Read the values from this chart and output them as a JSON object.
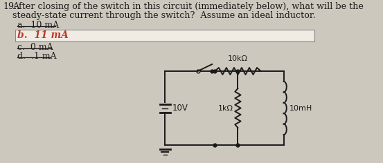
{
  "question_number": "19.",
  "question_text1": "After closing of the switch in this circuit (immediately below), what will be the",
  "question_text2": "steady-state current through the switch?  Assume an ideal inductor.",
  "answer_a": "a.  10 mA",
  "answer_b": "b.  11 mA",
  "answer_c": "c.  0 mA",
  "answer_d": "d.  .1 mA",
  "bg_color": "#cdc8be",
  "text_color": "#1a1a1a",
  "answer_b_color": "#c0392b",
  "box_color": "#f0ece4",
  "circuit_voltage": "10V",
  "circuit_r1": "10kΩ",
  "circuit_r2": "1kΩ",
  "circuit_l": "10mH",
  "fs_main": 9.2,
  "fs_ans": 9.0
}
